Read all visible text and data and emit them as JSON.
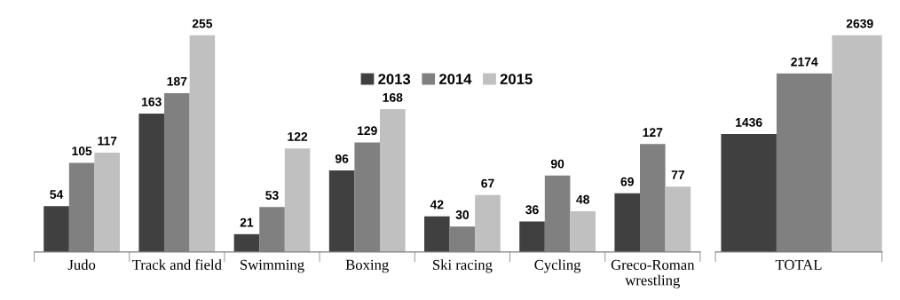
{
  "chart_data": [
    {
      "type": "bar",
      "categories": [
        "Judo",
        "Track and field",
        "Swimming",
        "Boxing",
        "Ski racing",
        "Cycling",
        "Greco-Roman\nwrestling"
      ],
      "series": [
        {
          "name": "2013",
          "color": "#404040",
          "values": [
            54,
            163,
            21,
            96,
            42,
            36,
            69
          ]
        },
        {
          "name": "2014",
          "color": "#808080",
          "values": [
            105,
            187,
            53,
            129,
            30,
            90,
            127
          ]
        },
        {
          "name": "2015",
          "color": "#c0c0c0",
          "values": [
            117,
            255,
            122,
            168,
            67,
            48,
            77
          ]
        }
      ],
      "data_labels": true,
      "legend": "top",
      "grid": false
    },
    {
      "type": "bar",
      "categories": [
        null,
        "TOTAL",
        null
      ],
      "values": [
        1436,
        2174,
        2639
      ],
      "colors": [
        "#404040",
        "#808080",
        "#c0c0c0"
      ],
      "data_labels": true,
      "grid": false
    }
  ]
}
